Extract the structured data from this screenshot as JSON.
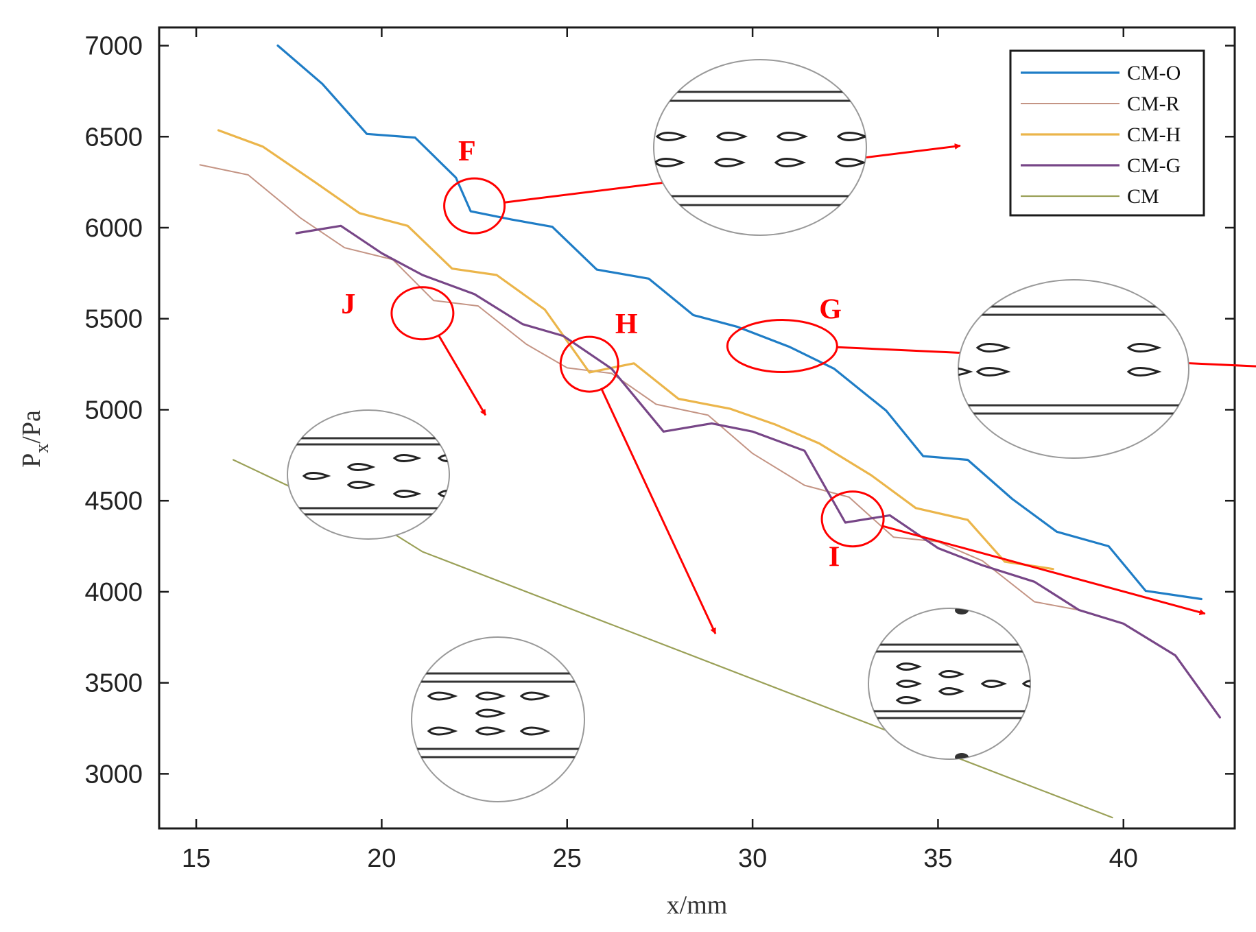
{
  "chart_data": {
    "type": "line",
    "title": "",
    "xlabel": "x/mm",
    "ylabel": "P",
    "ylabel_sub": "x",
    "ylabel_unit": "/Pa",
    "xlim": [
      14,
      43
    ],
    "ylim": [
      2700,
      7100
    ],
    "xticks": [
      15,
      20,
      25,
      30,
      35,
      40
    ],
    "yticks": [
      3000,
      3500,
      4000,
      4500,
      5000,
      5500,
      6000,
      6500,
      7000
    ],
    "legend_position": "top-right",
    "series": [
      {
        "name": "CM-O",
        "color": "#1f7dc6",
        "width": 3.2,
        "points": [
          [
            17.2,
            7000
          ],
          [
            18.4,
            6790
          ],
          [
            19.6,
            6515
          ],
          [
            20.9,
            6495
          ],
          [
            22,
            6275
          ],
          [
            22.4,
            6090
          ],
          [
            23.5,
            6045
          ],
          [
            24.6,
            6005
          ],
          [
            25.8,
            5770
          ],
          [
            27.2,
            5720
          ],
          [
            28.4,
            5520
          ],
          [
            29.6,
            5455
          ],
          [
            31,
            5345
          ],
          [
            32.2,
            5225
          ],
          [
            33.6,
            4995
          ],
          [
            34.6,
            4745
          ],
          [
            35.8,
            4725
          ],
          [
            37,
            4510
          ],
          [
            38.2,
            4330
          ],
          [
            39.6,
            4250
          ],
          [
            40.6,
            4005
          ],
          [
            42.1,
            3960
          ]
        ]
      },
      {
        "name": "CM-R",
        "color": "#c49484",
        "width": 2,
        "points": [
          [
            15.1,
            6345
          ],
          [
            16.4,
            6290
          ],
          [
            17.8,
            6055
          ],
          [
            19,
            5890
          ],
          [
            20.3,
            5825
          ],
          [
            21.4,
            5600
          ],
          [
            22.6,
            5570
          ],
          [
            23.9,
            5360
          ],
          [
            25,
            5230
          ],
          [
            26.2,
            5200
          ],
          [
            27.4,
            5030
          ],
          [
            28.8,
            4970
          ],
          [
            30,
            4760
          ],
          [
            31.4,
            4585
          ],
          [
            32.6,
            4520
          ],
          [
            33.8,
            4300
          ],
          [
            35,
            4275
          ],
          [
            36.2,
            4170
          ],
          [
            37.6,
            3945
          ],
          [
            38.8,
            3900
          ]
        ]
      },
      {
        "name": "CM-H",
        "color": "#ebb54a",
        "width": 3.2,
        "points": [
          [
            15.6,
            6535
          ],
          [
            16.8,
            6445
          ],
          [
            18.2,
            6250
          ],
          [
            19.4,
            6080
          ],
          [
            20.7,
            6010
          ],
          [
            21.9,
            5775
          ],
          [
            23.1,
            5740
          ],
          [
            24.4,
            5550
          ],
          [
            25.6,
            5205
          ],
          [
            26.8,
            5255
          ],
          [
            28,
            5060
          ],
          [
            29.4,
            5005
          ],
          [
            30.6,
            4920
          ],
          [
            31.8,
            4815
          ],
          [
            33.2,
            4640
          ],
          [
            34.4,
            4460
          ],
          [
            35.8,
            4395
          ],
          [
            36.8,
            4165
          ],
          [
            38.1,
            4125
          ]
        ]
      },
      {
        "name": "CM-G",
        "color": "#774687",
        "width": 3.2,
        "points": [
          [
            17.7,
            5970
          ],
          [
            18.9,
            6010
          ],
          [
            20,
            5860
          ],
          [
            21.1,
            5740
          ],
          [
            22.5,
            5635
          ],
          [
            23.8,
            5470
          ],
          [
            24.9,
            5405
          ],
          [
            26.2,
            5225
          ],
          [
            27.6,
            4880
          ],
          [
            28.9,
            4925
          ],
          [
            30,
            4880
          ],
          [
            31.4,
            4775
          ],
          [
            32.5,
            4380
          ],
          [
            33.7,
            4420
          ],
          [
            35,
            4240
          ],
          [
            36.2,
            4145
          ],
          [
            37.6,
            4055
          ],
          [
            38.8,
            3900
          ],
          [
            40,
            3825
          ],
          [
            41.4,
            3650
          ],
          [
            42.6,
            3310
          ]
        ]
      },
      {
        "name": "CM",
        "color": "#9aa057",
        "width": 2.2,
        "points": [
          [
            16,
            4725
          ],
          [
            17.5,
            4580
          ],
          [
            18.8,
            4450
          ],
          [
            20,
            4360
          ],
          [
            21.1,
            4220
          ],
          [
            39.7,
            2760
          ]
        ]
      }
    ],
    "annotations": [
      {
        "label": "F",
        "center": [
          22.5,
          6120
        ],
        "label_at": [
          22.3,
          6370
        ],
        "zoom_at": [
          35.6,
          6450
        ]
      },
      {
        "label": "G",
        "center": [
          30.8,
          5350
        ],
        "label_at": [
          32.1,
          5500
        ],
        "zoom_at": [
          44.5,
          5230
        ]
      },
      {
        "label": "H",
        "center": [
          25.6,
          5250
        ],
        "label_at": [
          26.6,
          5420
        ],
        "zoom_at": [
          29.0,
          3770
        ]
      },
      {
        "label": "I",
        "center": [
          32.7,
          4400
        ],
        "label_at": [
          32.2,
          4140
        ],
        "zoom_at": [
          42.2,
          3880
        ]
      },
      {
        "label": "J",
        "center": [
          21.1,
          5530
        ],
        "label_at": [
          19.1,
          5530
        ],
        "zoom_at": [
          22.8,
          4970
        ]
      }
    ]
  },
  "insets": [
    {
      "name": "inset-F",
      "rows": 2,
      "cols": 4,
      "partial_edge": "right"
    },
    {
      "name": "inset-G",
      "rows": 2,
      "cols": 2,
      "partial_edge": "left"
    },
    {
      "name": "inset-H",
      "rows": 3,
      "cols": 3,
      "partial_edge": "none"
    },
    {
      "name": "inset-I",
      "rows": 3,
      "cols": 3,
      "partial_edge": "right"
    },
    {
      "name": "inset-J",
      "rows": 3,
      "cols": 3,
      "partial_edge": "right"
    }
  ]
}
